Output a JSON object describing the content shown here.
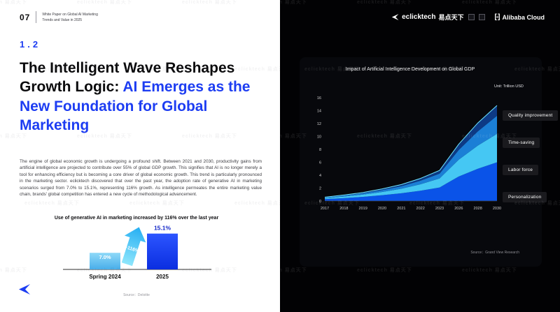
{
  "page_header": {
    "page_number": "07",
    "line1": "White Paper on Global AI Marketing",
    "line2": "Trends and Value in 2025",
    "section_number": "1.2"
  },
  "heading": {
    "part_black": "The Intelligent Wave Reshapes Growth Logic: ",
    "part_blue": "AI Emerges as the New Foundation for Global Marketing"
  },
  "body_paragraph": "The engine of global economic growth is undergoing a profound shift. Between 2021 and 2030, productivity gains from artificial intelligence are projected to contribute over 55% of global GDP growth. This signifies that AI is no longer merely a tool for enhancing efficiency but is becoming a core driver of global economic growth. This trend is particularly pronounced in the marketing sector. eclicktech discovered that over the past year, the adoption rate of generative AI in marketing scenarios surged from 7.0% to 15.1%, representing 116% growth. As intelligence permeates the entire marketing value chain, brands' global competition has entered a new cycle of methodological advancement.",
  "brand_header": {
    "eclicktech_name": "eclicktech",
    "eclicktech_cn": "易点天下",
    "alibaba_icon": "[-]",
    "alibaba_name": "Alibaba Cloud"
  },
  "watermark": {
    "text": "eclicktech 易点天下"
  },
  "colors": {
    "accent_blue": "#1d3df2",
    "cyan": "#45c7f3",
    "page_dark": "#020204"
  },
  "chart_data": [
    {
      "type": "bar",
      "title": "Use of generative AI in marketing increased by 116% over the last year",
      "categories": [
        "Spring 2024",
        "2025"
      ],
      "values": [
        7.0,
        15.1
      ],
      "value_labels": [
        "7.0%",
        "15.1%"
      ],
      "growth_annotation": "+116%",
      "source": "Source：Deloitte",
      "ylabel": "",
      "ylim": [
        0,
        16
      ],
      "bar_colors": [
        "#6cc6f2",
        "#1b3df0"
      ]
    },
    {
      "type": "area",
      "title": "Impact of Artificial Intelligence Development on Global GDP",
      "unit_label": "Unit: Trillion USD",
      "x": [
        "2017",
        "2018",
        "2019",
        "2020",
        "2021",
        "2022",
        "2023",
        "2026",
        "2028",
        "2030"
      ],
      "series": [
        {
          "name": "Personalization",
          "color": "#0a53e8",
          "values": [
            0.3,
            0.45,
            0.65,
            0.9,
            1.2,
            1.6,
            2.1,
            3.8,
            5.0,
            6.0
          ]
        },
        {
          "name": "Labor force",
          "color": "#45c7f3",
          "values": [
            0.15,
            0.25,
            0.35,
            0.5,
            0.7,
            1.0,
            1.4,
            2.6,
            3.6,
            4.4
          ]
        },
        {
          "name": "Time-saving",
          "color": "#1b7fd6",
          "values": [
            0.1,
            0.15,
            0.2,
            0.3,
            0.4,
            0.55,
            0.75,
            1.5,
            2.2,
            2.8
          ]
        },
        {
          "name": "Quality improvement",
          "color": "#0d3a85",
          "values": [
            0.05,
            0.08,
            0.12,
            0.18,
            0.25,
            0.35,
            0.5,
            0.9,
            1.3,
            1.6
          ]
        }
      ],
      "legend": [
        "Quality improvement",
        "Time-saving",
        "Labor force",
        "Personalization"
      ],
      "legend_position": "right",
      "yticks": [
        0,
        2,
        4,
        6,
        8,
        10,
        12,
        14,
        16
      ],
      "ylim": [
        0,
        16
      ],
      "grid": false,
      "source": "Source：Grand View Research"
    }
  ]
}
